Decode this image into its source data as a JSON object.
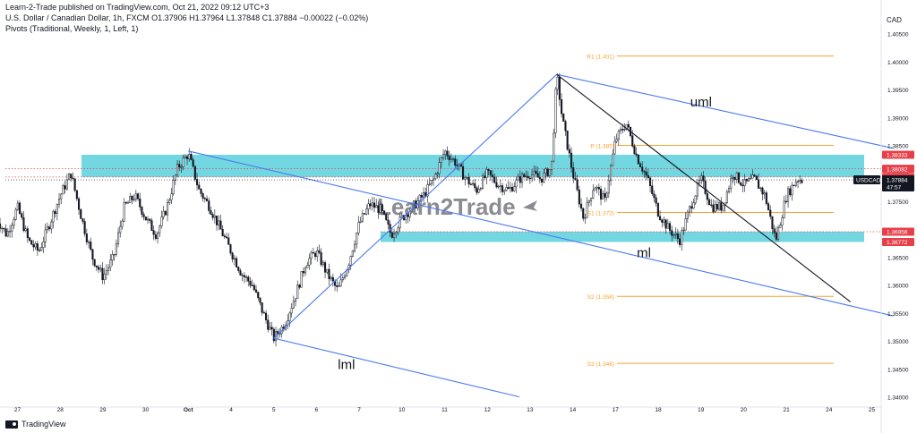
{
  "header": {
    "publisher": "Learn-2-Trade published on TradingView.com, Oct 21, 2022 09:12 UTC+3",
    "symbol_line": "U.S. Dollar / Canadian Dollar, 1h, FXCM  O1.37906  H1.37964  L1.37848  C1.37884  −0.00022 (−0.02%)",
    "indicator_line": "Pivots (Traditional, Weekly, 1, Left, 1)"
  },
  "footer": {
    "brand": "TradingView"
  },
  "price_axis": {
    "currency": "CAD",
    "ticks": [
      "1.40500",
      "1.40000",
      "1.39500",
      "1.39000",
      "1.38500",
      "1.38000",
      "1.37500",
      "1.37000",
      "1.36500",
      "1.36000",
      "1.35500",
      "1.35000",
      "1.34500",
      "1.34000"
    ]
  },
  "time_axis": {
    "ticks": [
      "27",
      "28",
      "29",
      "30",
      "Oct",
      "4",
      "5",
      "6",
      "7",
      "10",
      "11",
      "12",
      "13",
      "14",
      "17",
      "18",
      "19",
      "20",
      "21",
      "24",
      "25"
    ]
  },
  "watermark": "Learn2Trade",
  "colors": {
    "up": "#ffffff",
    "down": "#131722",
    "zone": "#5ad0dc",
    "channel": "#4a79f0",
    "trendline": "#131722",
    "pivot": "#f7a233",
    "price_tag": "#e5404a",
    "current_tag": "#131722"
  },
  "chart_data": {
    "type": "candlestick",
    "symbol": "USDCAD",
    "timeframe": "1h",
    "ohlc_last": {
      "open": 1.37906,
      "high": 1.37964,
      "low": 1.37848,
      "close": 1.37884,
      "change": -0.00022,
      "change_pct": -0.02
    },
    "ylim": [
      1.3385,
      1.4075
    ],
    "y_ticks": [
      1.405,
      1.4,
      1.395,
      1.39,
      1.385,
      1.38,
      1.375,
      1.37,
      1.365,
      1.36,
      1.355,
      1.35,
      1.345,
      1.34
    ],
    "price_path": [
      [
        "Sep 26 12:00",
        1.372
      ],
      [
        "Sep 26 18:00",
        1.369
      ],
      [
        "Sep 27 00:00",
        1.374
      ],
      [
        "Sep 27 06:00",
        1.368
      ],
      [
        "Sep 27 12:00",
        1.366
      ],
      [
        "Sep 27 18:00",
        1.371
      ],
      [
        "Sep 28 00:00",
        1.376
      ],
      [
        "Sep 28 06:00",
        1.38
      ],
      [
        "Sep 28 12:00",
        1.372
      ],
      [
        "Sep 28 18:00",
        1.365
      ],
      [
        "Sep 29 00:00",
        1.3615
      ],
      [
        "Sep 29 06:00",
        1.365
      ],
      [
        "Sep 29 12:00",
        1.374
      ],
      [
        "Sep 29 18:00",
        1.376
      ],
      [
        "Sep 30 00:00",
        1.372
      ],
      [
        "Sep 30 06:00",
        1.369
      ],
      [
        "Sep 30 12:00",
        1.374
      ],
      [
        "Sep 30 18:00",
        1.381
      ],
      [
        "Oct 3 00:00",
        1.3835
      ],
      [
        "Oct 3 06:00",
        1.377
      ],
      [
        "Oct 3 12:00",
        1.374
      ],
      [
        "Oct 3 18:00",
        1.37
      ],
      [
        "Oct 4 00:00",
        1.366
      ],
      [
        "Oct 4 06:00",
        1.362
      ],
      [
        "Oct 4 12:00",
        1.36
      ],
      [
        "Oct 4 18:00",
        1.355
      ],
      [
        "Oct 5 00:00",
        1.3505
      ],
      [
        "Oct 5 06:00",
        1.353
      ],
      [
        "Oct 5 12:00",
        1.358
      ],
      [
        "Oct 5 18:00",
        1.364
      ],
      [
        "Oct 6 00:00",
        1.366
      ],
      [
        "Oct 6 06:00",
        1.362
      ],
      [
        "Oct 6 12:00",
        1.359
      ],
      [
        "Oct 6 18:00",
        1.364
      ],
      [
        "Oct 7 00:00",
        1.371
      ],
      [
        "Oct 7 06:00",
        1.3745
      ],
      [
        "Oct 7 12:00",
        1.3735
      ],
      [
        "Oct 7 18:00",
        1.369
      ],
      [
        "Oct 10 00:00",
        1.372
      ],
      [
        "Oct 10 06:00",
        1.374
      ],
      [
        "Oct 10 12:00",
        1.376
      ],
      [
        "Oct 10 18:00",
        1.379
      ],
      [
        "Oct 11 00:00",
        1.384
      ],
      [
        "Oct 11 06:00",
        1.382
      ],
      [
        "Oct 11 12:00",
        1.379
      ],
      [
        "Oct 11 18:00",
        1.377
      ],
      [
        "Oct 12 00:00",
        1.38
      ],
      [
        "Oct 12 06:00",
        1.378
      ],
      [
        "Oct 12 12:00",
        1.377
      ],
      [
        "Oct 12 18:00",
        1.379
      ],
      [
        "Oct 13 00:00",
        1.38
      ],
      [
        "Oct 13 06:00",
        1.379
      ],
      [
        "Oct 13 12:00",
        1.381
      ],
      [
        "Oct 13 15:00",
        1.3977
      ],
      [
        "Oct 13 18:00",
        1.39
      ],
      [
        "Oct 14 00:00",
        1.38
      ],
      [
        "Oct 14 06:00",
        1.372
      ],
      [
        "Oct 14 12:00",
        1.378
      ],
      [
        "Oct 14 18:00",
        1.375
      ],
      [
        "Oct 17 00:00",
        1.386
      ],
      [
        "Oct 17 06:00",
        1.389
      ],
      [
        "Oct 17 12:00",
        1.383
      ],
      [
        "Oct 17 18:00",
        1.379
      ],
      [
        "Oct 18 00:00",
        1.373
      ],
      [
        "Oct 18 06:00",
        1.37
      ],
      [
        "Oct 18 12:00",
        1.368
      ],
      [
        "Oct 18 18:00",
        1.374
      ],
      [
        "Oct 19 00:00",
        1.379
      ],
      [
        "Oct 19 06:00",
        1.374
      ],
      [
        "Oct 19 12:00",
        1.374
      ],
      [
        "Oct 19 18:00",
        1.38
      ],
      [
        "Oct 20 00:00",
        1.378
      ],
      [
        "Oct 20 06:00",
        1.379
      ],
      [
        "Oct 20 12:00",
        1.376
      ],
      [
        "Oct 20 18:00",
        1.368
      ],
      [
        "Oct 21 00:00",
        1.376
      ],
      [
        "Oct 21 06:00",
        1.379
      ],
      [
        "Oct 21 09:00",
        1.3788
      ]
    ],
    "zones": [
      {
        "from": 1.37934,
        "to": 1.38333
      },
      {
        "from": 1.36772,
        "to": 1.36956
      }
    ],
    "price_tags": [
      1.38333,
      1.38082,
      1.37934,
      1.36956,
      1.36772
    ],
    "current_price": {
      "label": "USDCAD",
      "value": "1.37884",
      "timer": "47:57",
      "price": 1.37884
    },
    "pivots": [
      {
        "name": "R1",
        "label": "R1 (1.401)",
        "value": 1.401
      },
      {
        "name": "P",
        "label": "P (1.385)",
        "value": 1.385
      },
      {
        "name": "S1",
        "label": "S1 (1.373)",
        "value": 1.373
      },
      {
        "name": "S2",
        "label": "S2 (1.358)",
        "value": 1.358
      },
      {
        "name": "S3",
        "label": "S3 (1.346)",
        "value": 1.346
      }
    ],
    "lines": [
      {
        "name": "uml",
        "label": "uml",
        "from": [
          "Oct 13 15:00",
          1.3977
        ],
        "to": [
          "Oct 25 12:00",
          1.3845
        ]
      },
      {
        "name": "ml",
        "label": "ml",
        "from": [
          "Oct 3 00:00",
          1.384
        ],
        "to": [
          "Oct 25 12:00",
          1.3545
        ]
      },
      {
        "name": "lml",
        "label": "lml",
        "from": [
          "Oct 5 00:00",
          1.3505
        ],
        "to": [
          "Oct 12 18:00",
          1.34
        ]
      },
      {
        "name": "handle",
        "label": "",
        "from": [
          "Oct 5 00:00",
          1.3505
        ],
        "to": [
          "Oct 13 15:00",
          1.3977
        ]
      },
      {
        "name": "downtrend",
        "label": "",
        "from": [
          "Oct 13 15:00",
          1.3977
        ],
        "to": [
          "Oct 24 12:00",
          1.357
        ]
      }
    ],
    "line_labels": [
      {
        "text": "uml",
        "at": [
          "Oct 18 18:00",
          1.392
        ]
      },
      {
        "text": "ml",
        "at": [
          "Oct 17 12:00",
          1.365
        ]
      },
      {
        "text": "lml",
        "at": [
          "Oct 6 12:00",
          1.345
        ]
      }
    ],
    "dotted_levels": [
      1.38082,
      1.37934
    ]
  }
}
